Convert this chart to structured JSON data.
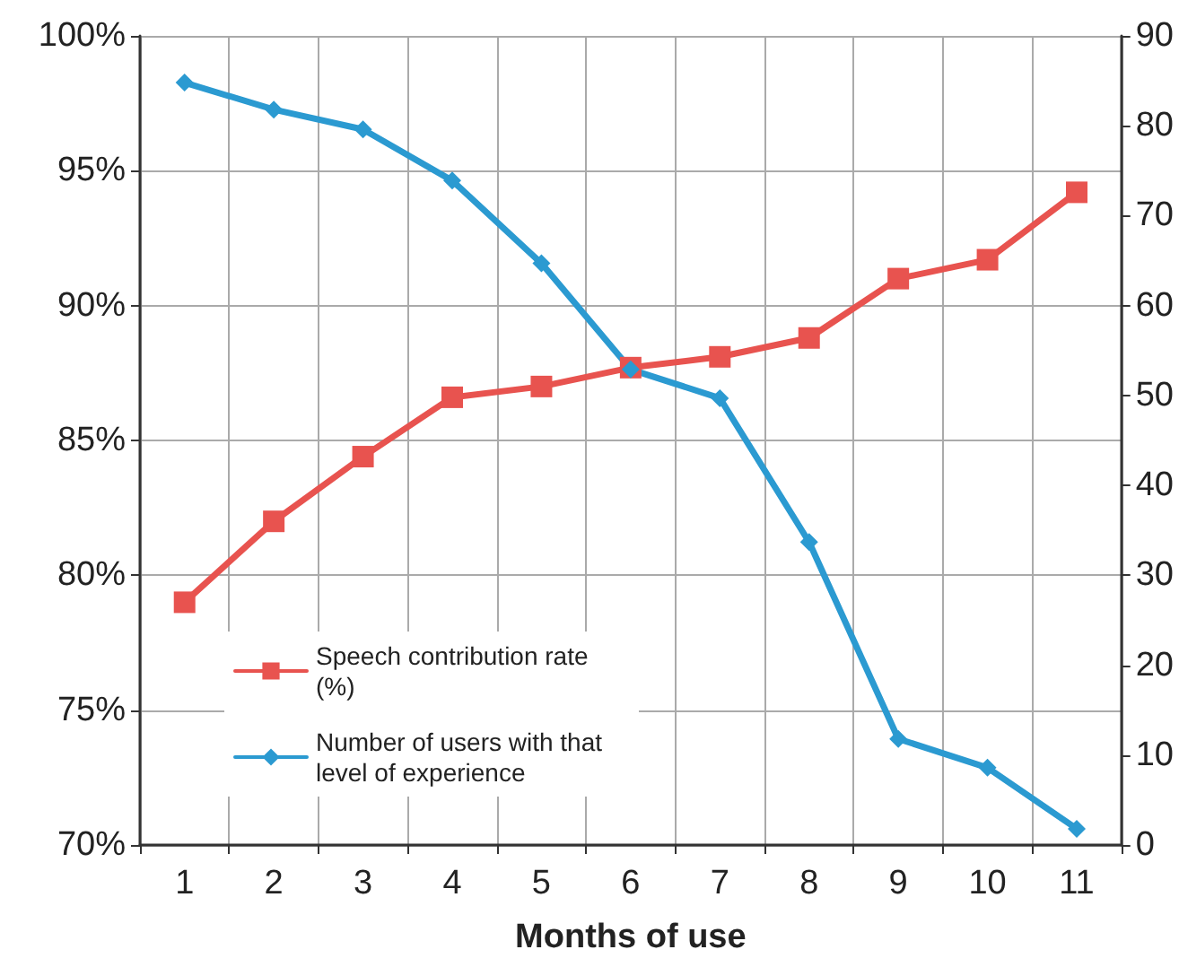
{
  "chart_data": {
    "type": "line",
    "xlabel": "Months of use",
    "categories": [
      "1",
      "2",
      "3",
      "4",
      "5",
      "6",
      "7",
      "8",
      "9",
      "10",
      "11"
    ],
    "series": [
      {
        "name": "Speech contribution rate (%)",
        "color": "#e8534f",
        "marker": "square",
        "values": [
          79.0,
          82.0,
          84.4,
          86.6,
          87.0,
          87.7,
          88.1,
          88.8,
          91.0,
          91.7,
          94.2
        ]
      },
      {
        "name": "Number of users with that level of experience",
        "color": "#2b9ad1",
        "marker": "diamond",
        "axis": "y2",
        "values": [
          84.8,
          81.8,
          79.6,
          73.9,
          64.7,
          52.9,
          49.7,
          33.7,
          11.8,
          8.6,
          1.8
        ]
      }
    ],
    "ylim": [
      70,
      100
    ],
    "yticks": [
      {
        "value": 70,
        "label": "70%"
      },
      {
        "value": 75,
        "label": "75%"
      },
      {
        "value": 80,
        "label": "80%"
      },
      {
        "value": 85,
        "label": "85%"
      },
      {
        "value": 90,
        "label": "90%"
      },
      {
        "value": 95,
        "label": "95%"
      },
      {
        "value": 100,
        "label": "100%"
      }
    ],
    "y2lim": [
      0,
      90
    ],
    "y2ticks": [
      0,
      10,
      20,
      30,
      40,
      50,
      60,
      70,
      80,
      90
    ],
    "grid": true,
    "legend": "bottom left",
    "line_style": "solid"
  }
}
